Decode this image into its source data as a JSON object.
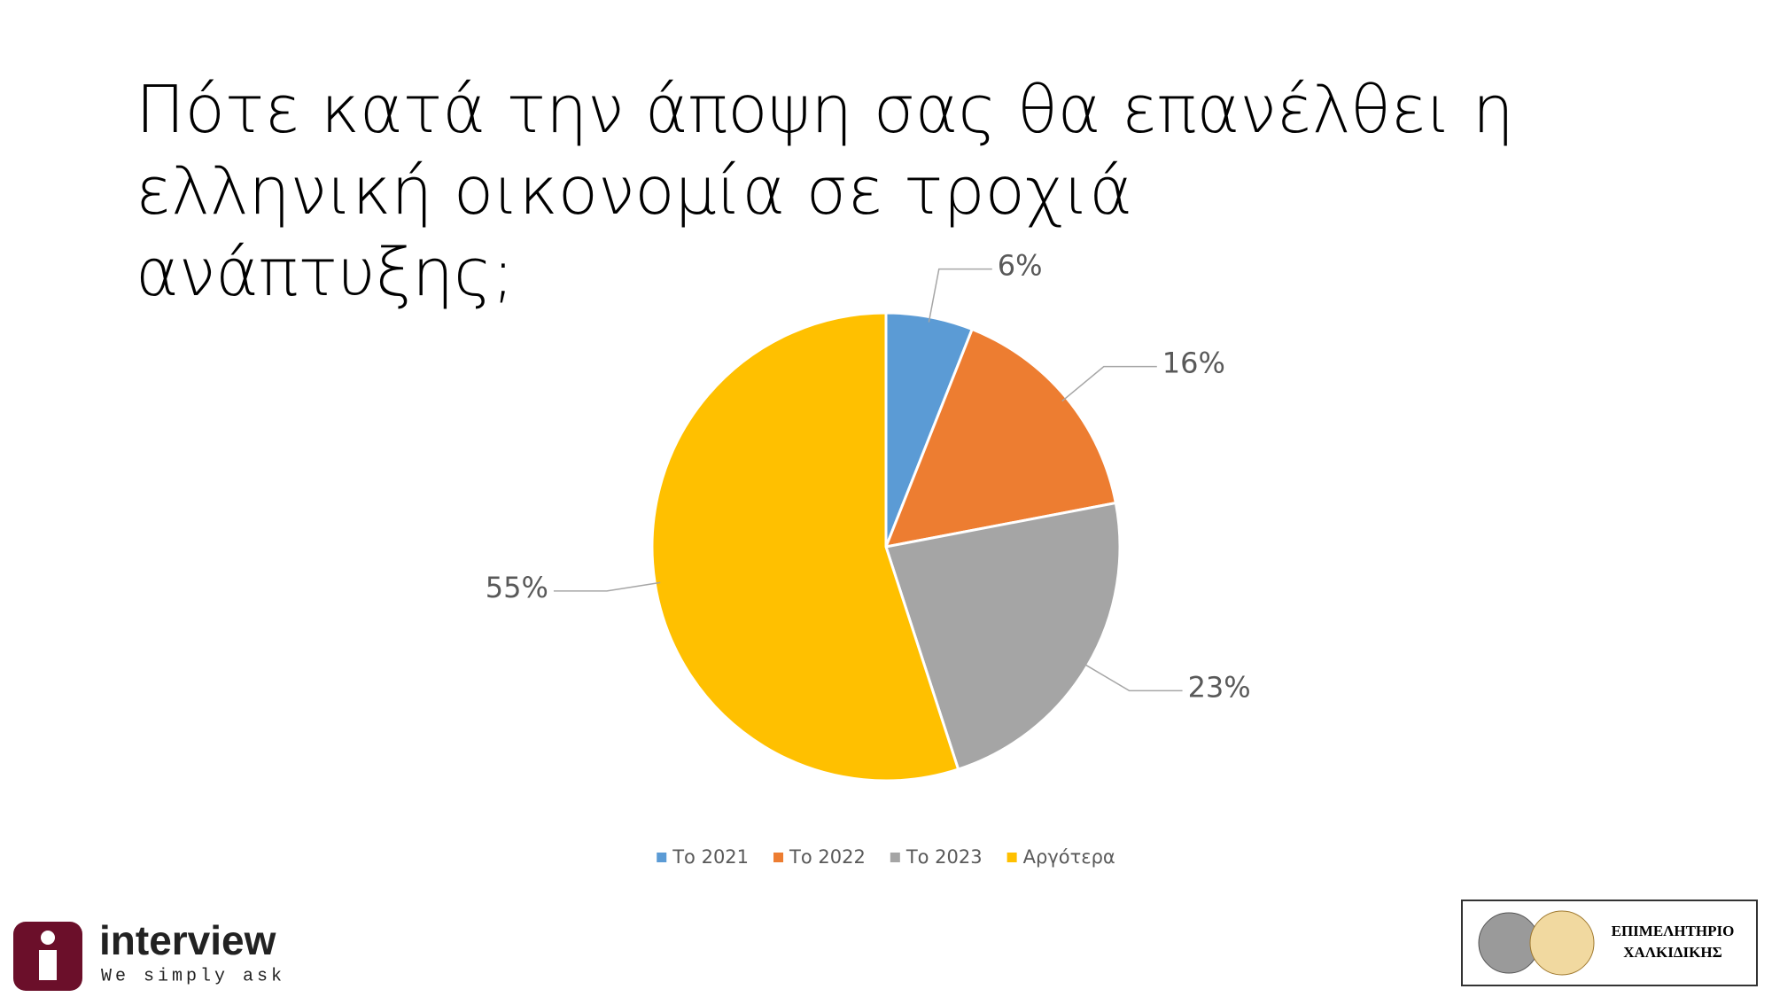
{
  "chart_data": {
    "type": "pie",
    "title": "Πότε κατά την άποψη σας θα επανέλθει η ελληνική οικονομία σε τροχιά ανάπτυξης;",
    "categories": [
      "Το 2021",
      "Το 2022",
      "Το 2023",
      "Αργότερα"
    ],
    "values": [
      6,
      16,
      23,
      55
    ],
    "value_labels": [
      "6%",
      "16%",
      "23%",
      "55%"
    ],
    "colors": [
      "#5b9bd5",
      "#ed7d31",
      "#a5a5a5",
      "#ffc000"
    ],
    "legend": "bottom"
  },
  "footer": {
    "left_logo": "interview",
    "left_tagline": "We simply ask",
    "right_logo": [
      "ΕΠΙΜΕΛΗΤΗΡΙΟ",
      "ΧΑΛΚΙΔΙΚΗΣ"
    ]
  }
}
